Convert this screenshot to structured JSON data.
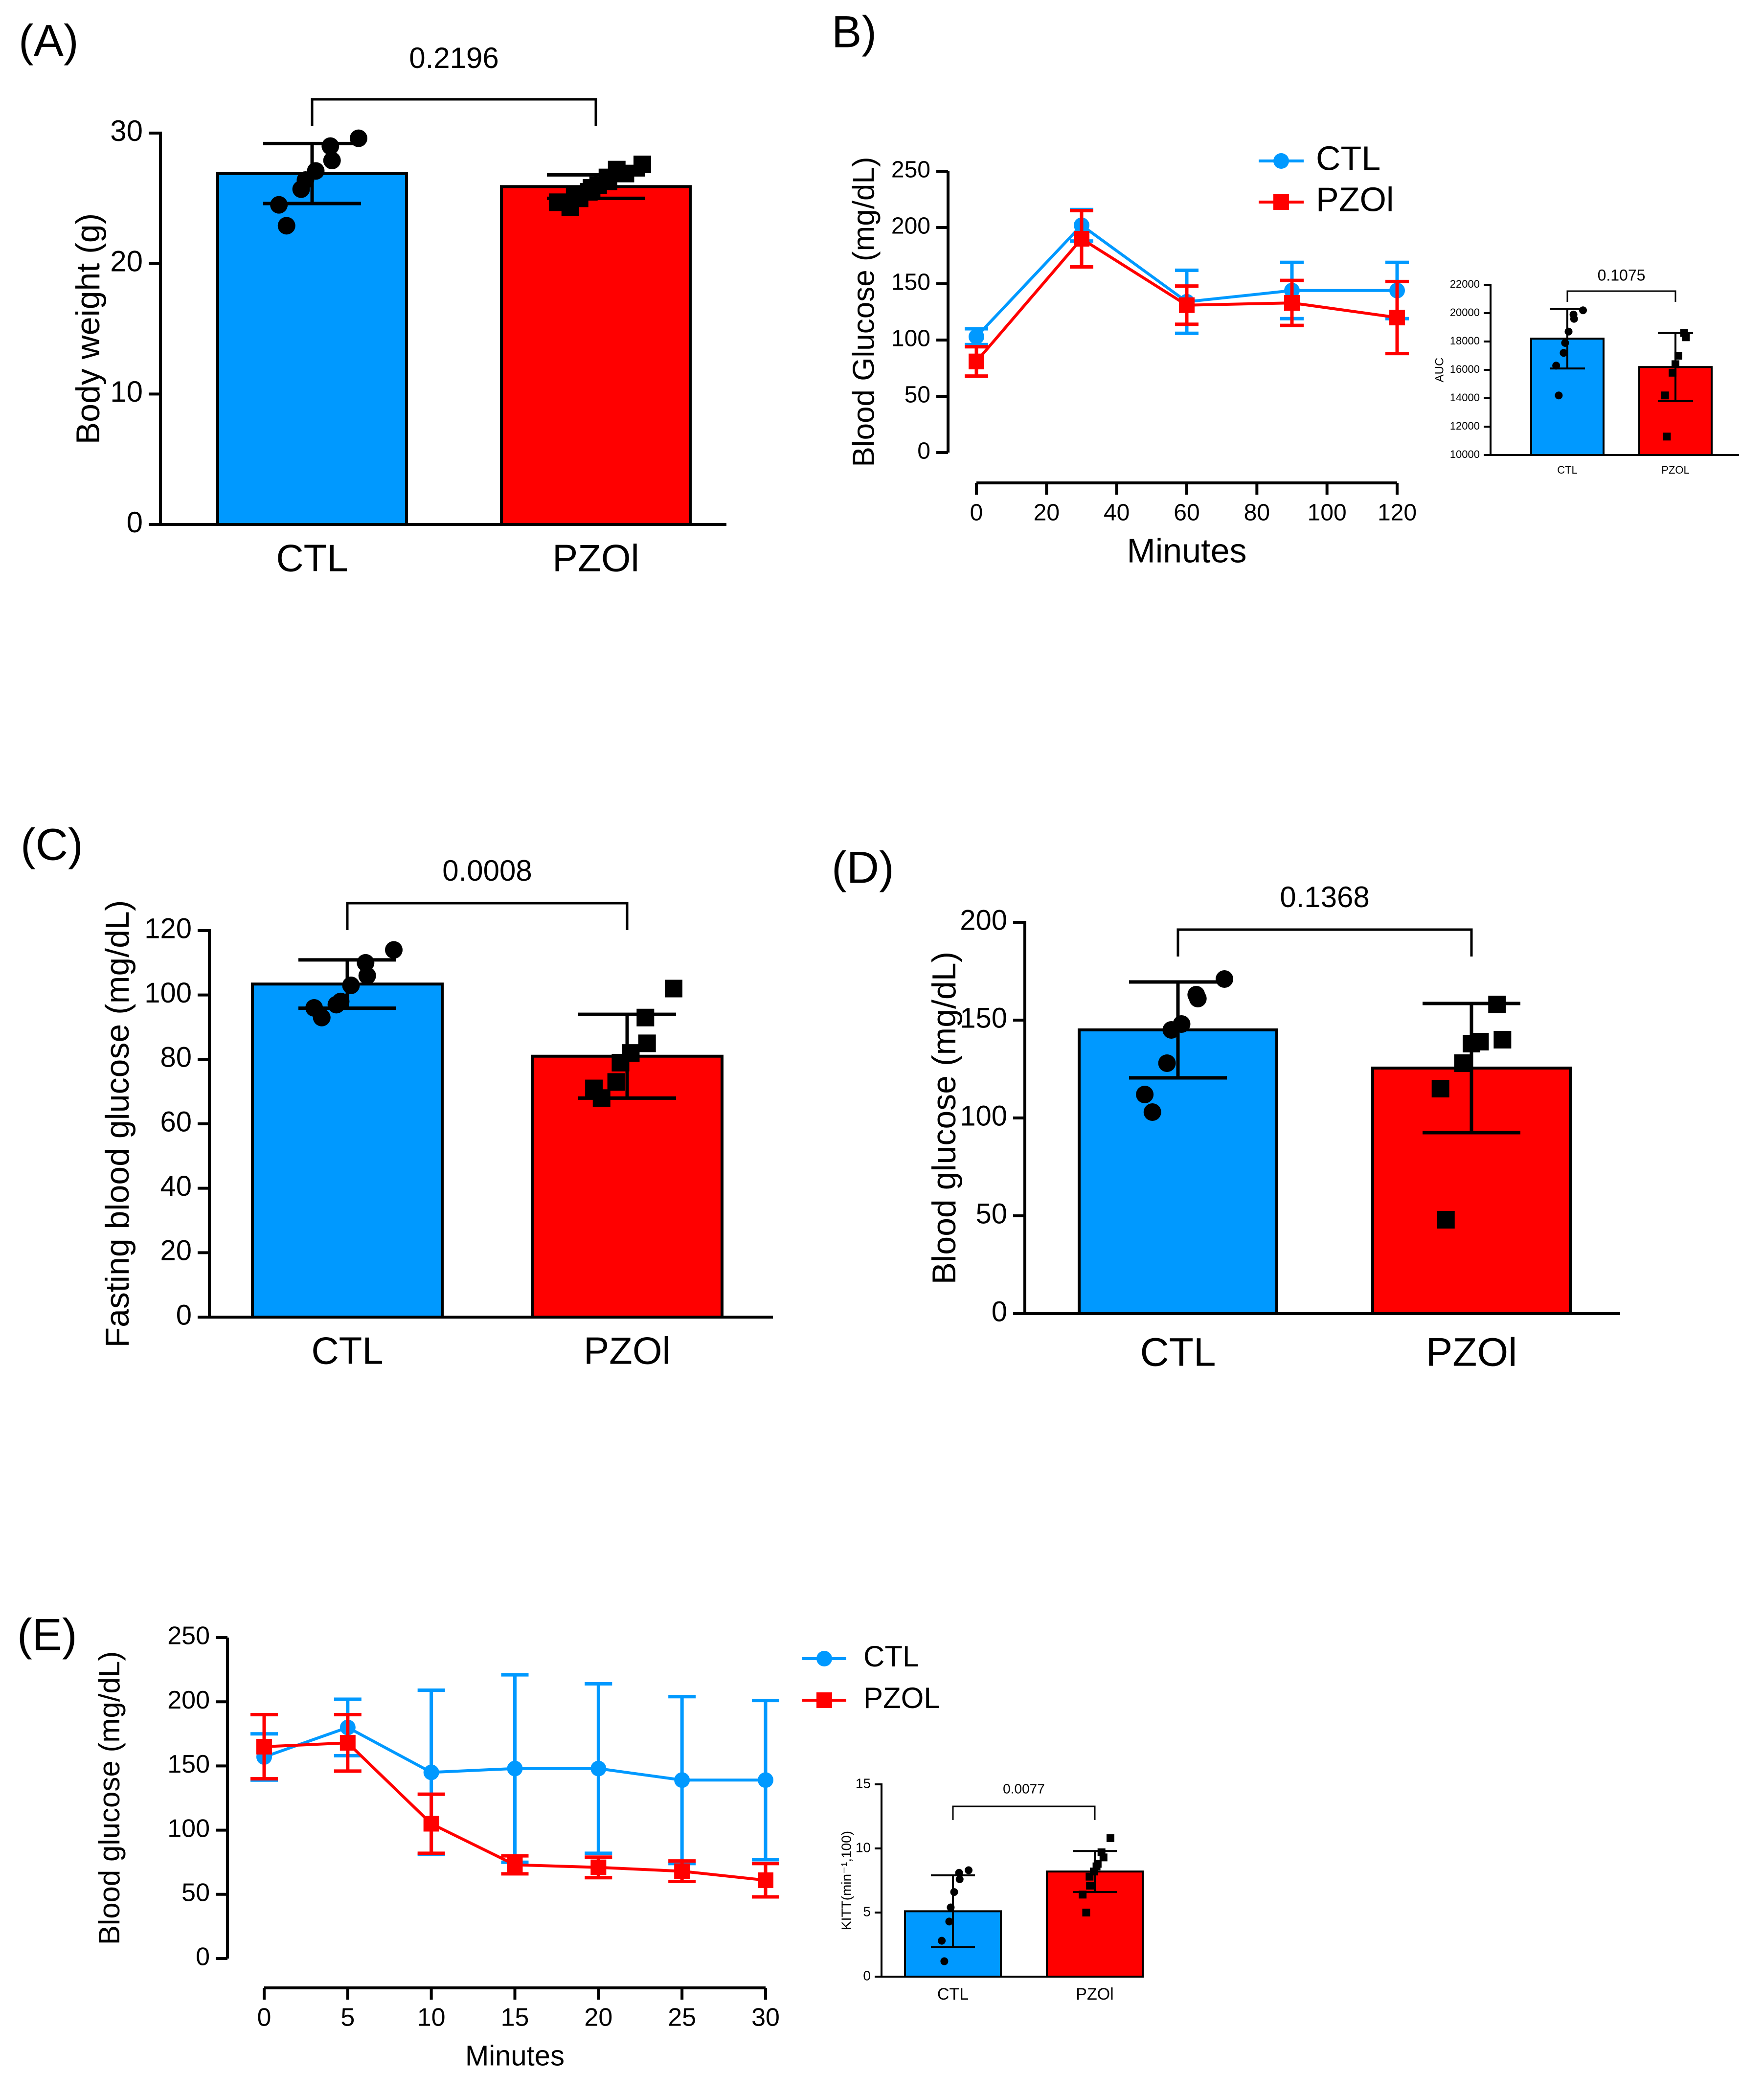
{
  "colors": {
    "ctl": "#0099ff",
    "pzol": "#ff0000",
    "axis": "#000000"
  },
  "chart_data": [
    {
      "id": "A",
      "panel_label": "(A)",
      "type": "bar",
      "ylabel": "Body weight (g)",
      "categories": [
        "CTL",
        "PZOl"
      ],
      "values": [
        26.9,
        25.9
      ],
      "sd": [
        2.3,
        0.9
      ],
      "ylim": [
        0,
        30
      ],
      "yticks": [
        0,
        10,
        20,
        30
      ],
      "marker": [
        "circle",
        "square"
      ],
      "points": [
        [
          22.9,
          24.5,
          25.7,
          26.4,
          27.1,
          27.9,
          29.0,
          29.6
        ],
        [
          24.3,
          24.7,
          25.0,
          25.2,
          25.5,
          25.8,
          26.0,
          26.3,
          26.6,
          26.9,
          27.2,
          27.6
        ]
      ],
      "comparison": "0.2196"
    },
    {
      "id": "B",
      "panel_label": "B)",
      "type": "line",
      "xlabel": "Minutes",
      "ylabel": "Blood Glucose (mg/dL)",
      "x": [
        0,
        30,
        60,
        90,
        120
      ],
      "xlim": [
        0,
        120
      ],
      "xticks": [
        0,
        20,
        40,
        60,
        80,
        100,
        120
      ],
      "ylim": [
        0,
        250
      ],
      "yticks": [
        0,
        50,
        100,
        150,
        200,
        250
      ],
      "series": [
        {
          "name": "CTL",
          "values": [
            103,
            202,
            134,
            144,
            144
          ],
          "err": [
            7,
            14,
            28,
            25,
            25
          ]
        },
        {
          "name": "PZOl",
          "values": [
            81,
            190,
            131,
            133,
            120
          ],
          "err": [
            13,
            25,
            17,
            20,
            32
          ]
        }
      ],
      "inset": {
        "type": "bar",
        "ylabel": "AUC",
        "categories": [
          "CTL",
          "PZOL"
        ],
        "values": [
          18200,
          16200
        ],
        "sd": [
          2100,
          2400
        ],
        "ylim": [
          10000,
          22000
        ],
        "yticks": [
          10000,
          12000,
          14000,
          16000,
          18000,
          20000,
          22000
        ],
        "marker": [
          "circle",
          "square"
        ],
        "points": [
          [
            14200,
            16300,
            17200,
            17900,
            18700,
            19600,
            19900,
            20200
          ],
          [
            11300,
            14200,
            15800,
            16400,
            17000,
            18300,
            18600
          ]
        ],
        "comparison": "0.1075"
      }
    },
    {
      "id": "C",
      "panel_label": "(C)",
      "type": "bar",
      "ylabel": "Fasting blood glucose (mg/dL)",
      "categories": [
        "CTL",
        "PZOl"
      ],
      "values": [
        103.4,
        81.0
      ],
      "sd": [
        7.5,
        13.0
      ],
      "ylim": [
        0,
        120
      ],
      "yticks": [
        0,
        20,
        40,
        60,
        80,
        100,
        120
      ],
      "marker": [
        "circle",
        "square"
      ],
      "points": [
        [
          93,
          96,
          97,
          98,
          103,
          106,
          110,
          114
        ],
        [
          68,
          71,
          73,
          79,
          82,
          85,
          93,
          102
        ]
      ],
      "comparison": "0.0008"
    },
    {
      "id": "D",
      "panel_label": "(D)",
      "type": "bar",
      "ylabel": "Blood glucose (mg/dL)",
      "categories": [
        "CTL",
        "PZOl"
      ],
      "values": [
        145,
        125.5
      ],
      "sd": [
        24.5,
        33
      ],
      "ylim": [
        0,
        200
      ],
      "yticks": [
        0,
        50,
        100,
        150,
        200
      ],
      "marker": [
        "circle",
        "square"
      ],
      "points": [
        [
          103,
          112,
          128,
          145,
          148,
          161,
          163,
          171
        ],
        [
          48,
          115,
          128,
          138,
          139,
          140,
          158
        ]
      ],
      "comparison": "0.1368"
    },
    {
      "id": "E",
      "panel_label": "(E)",
      "type": "line",
      "xlabel": "Minutes",
      "ylabel": "Blood glucose (mg/dL)",
      "x": [
        0,
        5,
        10,
        15,
        20,
        25,
        30
      ],
      "xlim": [
        0,
        30
      ],
      "xticks": [
        0,
        5,
        10,
        15,
        20,
        25,
        30
      ],
      "ylim": [
        0,
        250
      ],
      "yticks": [
        0,
        50,
        100,
        150,
        200,
        250
      ],
      "series": [
        {
          "name": "CTL",
          "values": [
            157,
            180,
            145,
            148,
            148,
            139,
            139
          ],
          "err": [
            18,
            22,
            64,
            73,
            66,
            65,
            62
          ]
        },
        {
          "name": "PZOL",
          "values": [
            165,
            168,
            105,
            73,
            71,
            68,
            61
          ],
          "err": [
            25,
            22,
            23,
            7,
            8,
            8,
            13
          ]
        }
      ],
      "inset": {
        "type": "bar",
        "ylabel": "KITT(min⁻¹,100)",
        "categories": [
          "CTL",
          "PZOl"
        ],
        "values": [
          5.1,
          8.2
        ],
        "sd": [
          2.8,
          1.6
        ],
        "ylim": [
          0,
          15
        ],
        "yticks": [
          0,
          5,
          10,
          15
        ],
        "marker": [
          "circle",
          "square"
        ],
        "points": [
          [
            1.2,
            2.8,
            4.3,
            5.4,
            6.6,
            7.6,
            8.1,
            8.3
          ],
          [
            5.0,
            6.4,
            7.1,
            7.8,
            8.2,
            8.6,
            8.8,
            9.3,
            9.7,
            10.8
          ]
        ],
        "comparison": "0.0077"
      }
    }
  ]
}
